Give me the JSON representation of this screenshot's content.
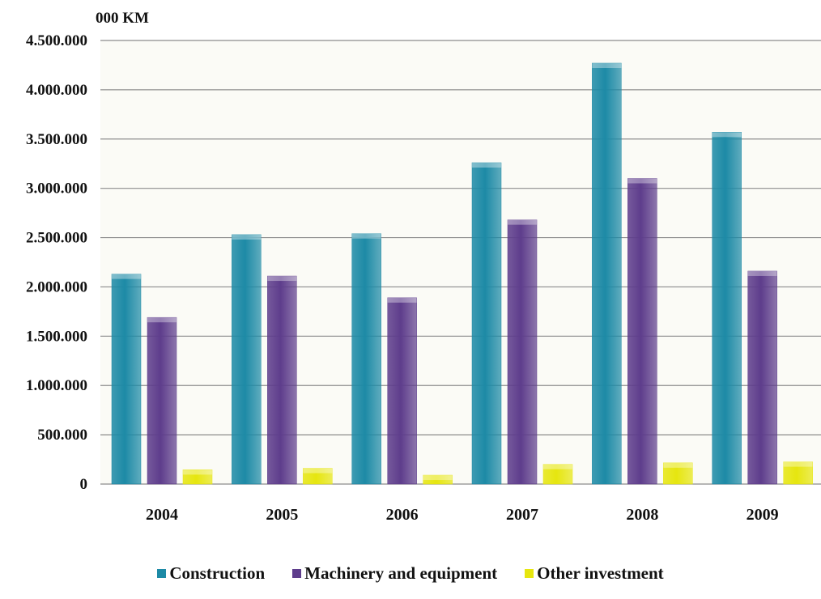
{
  "chart_data": {
    "type": "bar",
    "unit_label": "000 KM",
    "categories": [
      "2004",
      "2005",
      "2006",
      "2007",
      "2008",
      "2009"
    ],
    "series": [
      {
        "name": "Construction",
        "color": "#1d8aa6",
        "values": [
          2130000,
          2530000,
          2540000,
          3260000,
          4270000,
          3570000
        ]
      },
      {
        "name": "Machinery and equipment",
        "color": "#5e3d8c",
        "values": [
          1690000,
          2110000,
          1890000,
          2680000,
          3100000,
          2160000
        ]
      },
      {
        "name": "Other investment",
        "color": "#e6e60f",
        "values": [
          145000,
          160000,
          90000,
          200000,
          215000,
          225000
        ]
      }
    ],
    "ylim": [
      0,
      4500000
    ],
    "y_ticks": [
      "0",
      "500.000",
      "1.000.000",
      "1.500.000",
      "2.000.000",
      "2.500.000",
      "3.000.000",
      "3.500.000",
      "4.000.000",
      "4.500.000"
    ],
    "grid": true,
    "legend_position": "bottom"
  }
}
